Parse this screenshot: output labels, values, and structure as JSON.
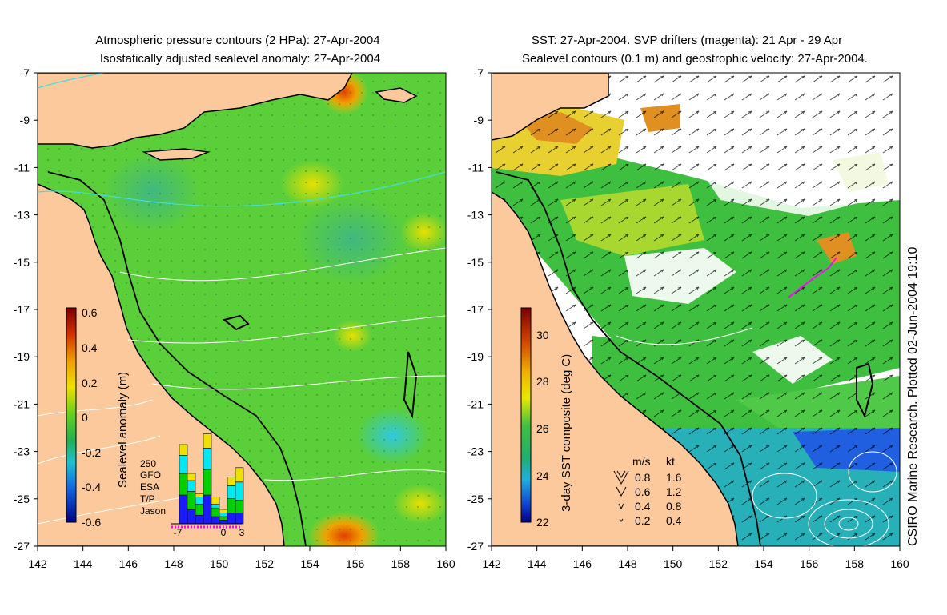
{
  "left_panel": {
    "title_line1": "Atmospheric pressure contours (2 HPa): 27-Apr-2004",
    "title_line2": "Isostatically adjusted sealevel anomaly: 27-Apr-2004",
    "colorbar_label": "Sealevel anomaly (m)",
    "colorbar_ticks": [
      "0.6",
      "0.4",
      "0.2",
      "0",
      "-0.2",
      "-0.4",
      "-0.6"
    ],
    "inset": {
      "ymax_label": "250",
      "series": [
        {
          "name": "GFO",
          "color": "#f0e000"
        },
        {
          "name": "ESA",
          "color": "#00e8f0"
        },
        {
          "name": "T/P",
          "color": "#00d000"
        },
        {
          "name": "Jason",
          "color": "#1a1aff"
        }
      ],
      "x_ticks": [
        "-7",
        "0",
        "3"
      ]
    }
  },
  "right_panel": {
    "title_line1": "SST: 27-Apr-2004. SVP drifters (magenta): 21 Apr - 29 Apr",
    "title_line2": "Sealevel contours (0.1 m) and geostrophic velocity: 27-Apr-2004.",
    "colorbar_label": "3-day SST composite (deg C)",
    "colorbar_ticks": [
      "30",
      "28",
      "26",
      "24",
      "22"
    ],
    "velocity_legend": {
      "header_ms": "m/s",
      "header_kt": "kt",
      "rows": [
        {
          "ms": "0.8",
          "kt": "1.6"
        },
        {
          "ms": "0.6",
          "kt": "1.2"
        },
        {
          "ms": "0.4",
          "kt": "0.8"
        },
        {
          "ms": "0.2",
          "kt": "0.4"
        }
      ]
    }
  },
  "axes": {
    "y_ticks": [
      "-7",
      "-9",
      "-11",
      "-13",
      "-15",
      "-17",
      "-19",
      "-21",
      "-23",
      "-25",
      "-27"
    ],
    "x_ticks": [
      "142",
      "144",
      "146",
      "148",
      "150",
      "152",
      "154",
      "156",
      "158",
      "160"
    ]
  },
  "credit": "CSIRO Marine Research. Plotted 02-Jun-2004 19:10",
  "colors": {
    "land": "#fbc99b",
    "ocean_green": "#5bcf3a",
    "sst_green": "#3fbf3f"
  }
}
